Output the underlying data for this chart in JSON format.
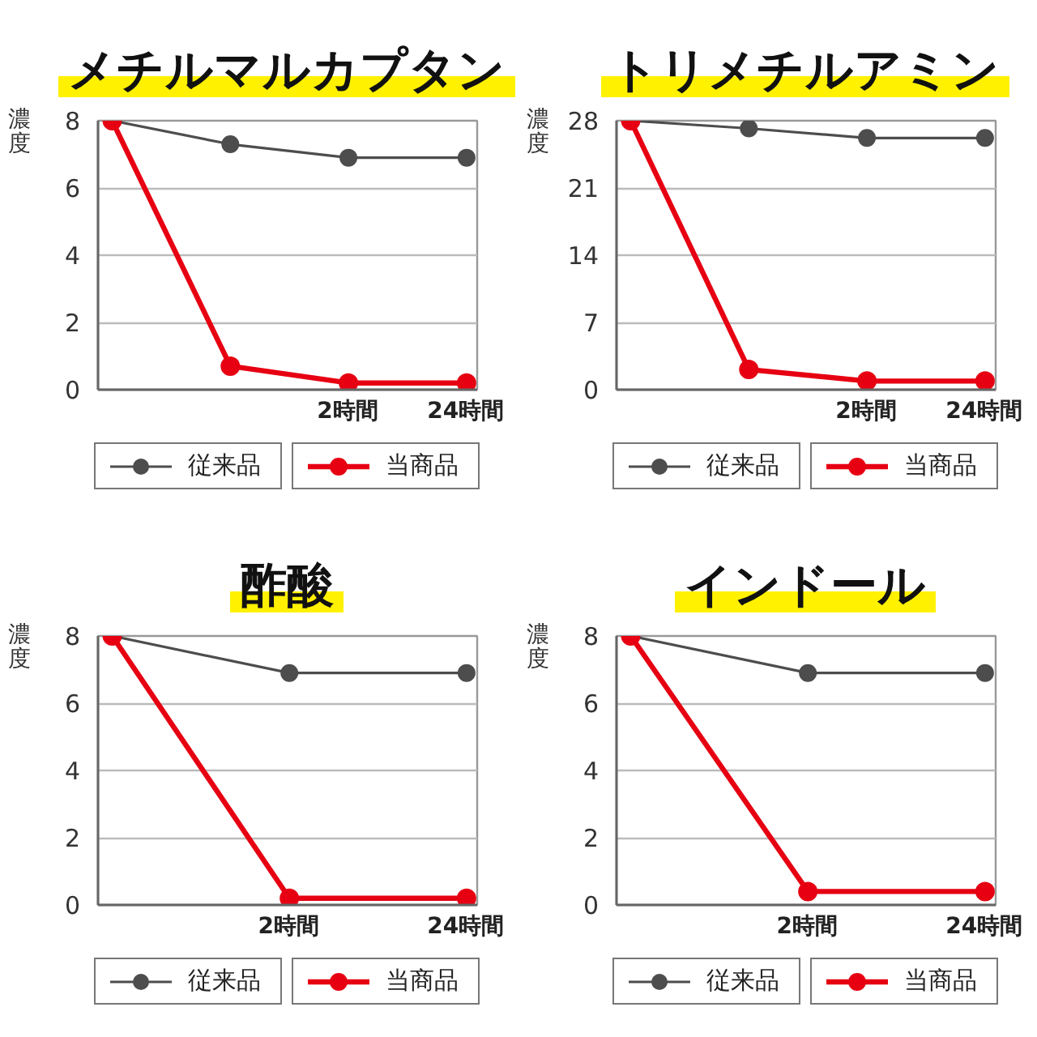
{
  "chart_data": [
    {
      "type": "line",
      "title": "メチルマルカプタン",
      "ylabel": "濃度",
      "categories": [
        null,
        null,
        "2時間",
        "24時間"
      ],
      "series": [
        {
          "name": "従来品",
          "color": "#4d4d4d",
          "values": [
            8,
            7.3,
            6.9,
            6.9
          ]
        },
        {
          "name": "当商品",
          "color": "#e60012",
          "values": [
            8,
            0.7,
            0.2,
            0.2
          ]
        }
      ],
      "ylim": [
        0,
        8
      ],
      "yticks": [
        0,
        2,
        4,
        6,
        8
      ],
      "grid": "y",
      "legend": "bottom",
      "marker": "circle",
      "line_style": "solid"
    },
    {
      "type": "line",
      "title": "トリメチルアミン",
      "ylabel": "濃度",
      "categories": [
        null,
        null,
        "2時間",
        "24時間"
      ],
      "series": [
        {
          "name": "従来品",
          "color": "#4d4d4d",
          "values": [
            28,
            27.2,
            26.2,
            26.2
          ]
        },
        {
          "name": "当商品",
          "color": "#e60012",
          "values": [
            28,
            2.1,
            0.9,
            0.9
          ]
        }
      ],
      "ylim": [
        0,
        28
      ],
      "yticks": [
        0,
        7,
        14,
        21,
        28
      ],
      "grid": "y",
      "legend": "bottom",
      "marker": "circle",
      "line_style": "solid"
    },
    {
      "type": "line",
      "title": "酢酸",
      "ylabel": "濃度",
      "categories": [
        null,
        "2時間",
        "24時間"
      ],
      "series": [
        {
          "name": "従来品",
          "color": "#4d4d4d",
          "values": [
            8,
            6.9,
            6.9
          ]
        },
        {
          "name": "当商品",
          "color": "#e60012",
          "values": [
            8,
            0.2,
            0.2
          ]
        }
      ],
      "ylim": [
        0,
        8
      ],
      "yticks": [
        0,
        2,
        4,
        6,
        8
      ],
      "grid": "y",
      "legend": "bottom",
      "marker": "circle",
      "line_style": "solid"
    },
    {
      "type": "line",
      "title": "インドール",
      "ylabel": "濃度",
      "categories": [
        null,
        "2時間",
        "24時間"
      ],
      "series": [
        {
          "name": "従来品",
          "color": "#4d4d4d",
          "values": [
            8,
            6.9,
            6.9
          ]
        },
        {
          "name": "当商品",
          "color": "#e60012",
          "values": [
            8,
            0.4,
            0.4
          ]
        }
      ],
      "ylim": [
        0,
        8
      ],
      "yticks": [
        0,
        2,
        4,
        6,
        8
      ],
      "grid": "y",
      "legend": "bottom",
      "marker": "circle",
      "line_style": "solid"
    }
  ]
}
